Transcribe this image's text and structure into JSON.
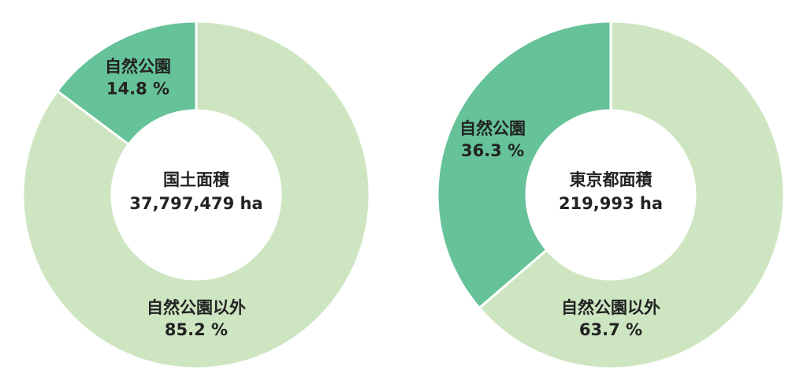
{
  "chart_data": [
    {
      "type": "donut",
      "center_title": "国土面積",
      "center_text": "37,797,479 ha",
      "categories": [
        "自然公園",
        "自然公園以外"
      ],
      "values": [
        14.8,
        85.2
      ],
      "value_labels": [
        "14.8 %",
        "85.2 %"
      ],
      "colors": [
        "#66c299",
        "#cde6c1"
      ]
    },
    {
      "type": "donut",
      "center_title": "東京都面積",
      "center_text": "219,993 ha",
      "categories": [
        "自然公園",
        "自然公園以外"
      ],
      "values": [
        36.3,
        63.7
      ],
      "value_labels": [
        "36.3 %",
        "63.7 %"
      ],
      "colors": [
        "#66c299",
        "#cde6c1"
      ]
    }
  ]
}
